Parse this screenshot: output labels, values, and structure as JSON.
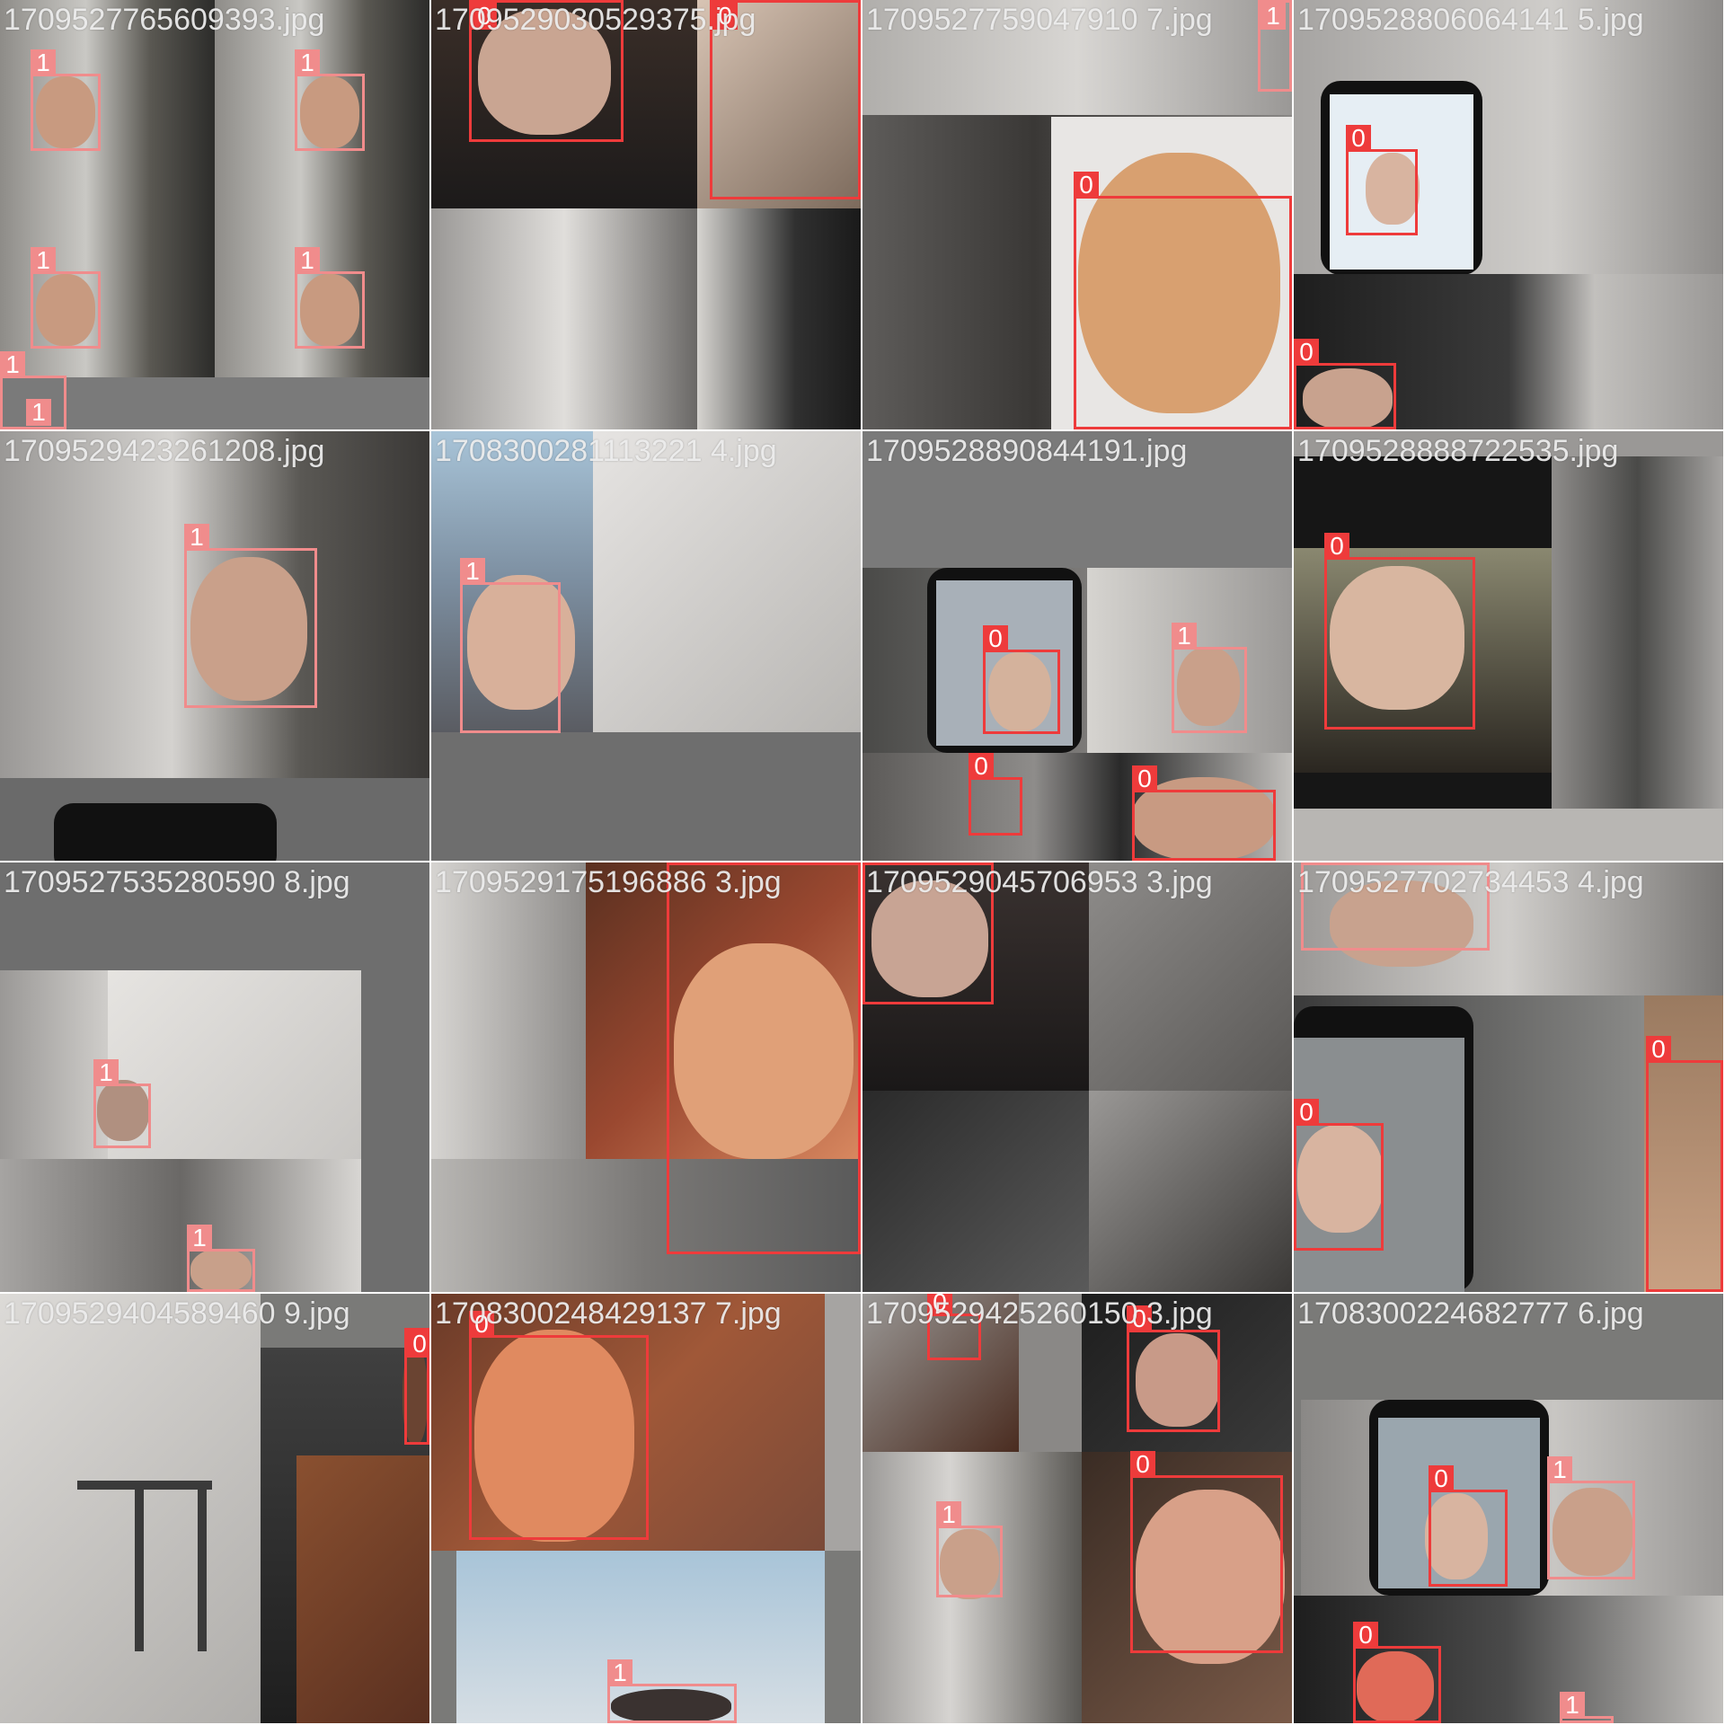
{
  "colors": {
    "class0": "#ee3b3b",
    "class1": "#f08c8c",
    "filename_text": "#f0f0f0",
    "padding_gray": "#6e6e6e"
  },
  "tiles": [
    {
      "filename": "1709527765609393.jpg",
      "boxes": [
        {
          "label": "1"
        },
        {
          "label": "1"
        },
        {
          "label": "1"
        },
        {
          "label": "1"
        },
        {
          "label": "1"
        },
        {
          "label": "1"
        }
      ]
    },
    {
      "filename": "1709529030529375.jpg",
      "boxes": [
        {
          "label": "0"
        },
        {
          "label": "0"
        }
      ]
    },
    {
      "filename": "1709527759047910 7.jpg",
      "boxes": [
        {
          "label": "1"
        },
        {
          "label": "0"
        }
      ]
    },
    {
      "filename": "1709528806064141 5.jpg",
      "boxes": [
        {
          "label": "0"
        },
        {
          "label": "0"
        }
      ]
    },
    {
      "filename": "1709529423261208.jpg",
      "boxes": [
        {
          "label": "1"
        }
      ]
    },
    {
      "filename": "1708300281113221 4.jpg",
      "boxes": [
        {
          "label": "1"
        }
      ]
    },
    {
      "filename": "1709528890844191.jpg",
      "boxes": [
        {
          "label": "0"
        },
        {
          "label": "1"
        },
        {
          "label": "0"
        },
        {
          "label": "0"
        }
      ]
    },
    {
      "filename": "1709528888722535.jpg",
      "boxes": [
        {
          "label": "0"
        }
      ]
    },
    {
      "filename": "1709527535280590 8.jpg",
      "boxes": [
        {
          "label": "1"
        },
        {
          "label": "1"
        }
      ]
    },
    {
      "filename": "1709529175196886 3.jpg",
      "boxes": [
        {
          "label": "0"
        }
      ]
    },
    {
      "filename": "1709529045706953 3.jpg",
      "boxes": [
        {
          "label": "0"
        }
      ]
    },
    {
      "filename": "1709527702734453 4.jpg",
      "boxes": [
        {
          "label": "1"
        },
        {
          "label": "0"
        },
        {
          "label": "0"
        }
      ]
    },
    {
      "filename": "1709529404589460 9.jpg",
      "boxes": [
        {
          "label": "0"
        }
      ]
    },
    {
      "filename": "1708300248429137 7.jpg",
      "boxes": [
        {
          "label": "0"
        },
        {
          "label": "1"
        }
      ]
    },
    {
      "filename": "1709529425260150 3.jpg",
      "boxes": [
        {
          "label": "0"
        },
        {
          "label": "0"
        },
        {
          "label": "1"
        },
        {
          "label": "0"
        }
      ]
    },
    {
      "filename": "1708300224682777 6.jpg",
      "boxes": [
        {
          "label": "0"
        },
        {
          "label": "1"
        },
        {
          "label": "0"
        },
        {
          "label": "1"
        }
      ]
    }
  ]
}
